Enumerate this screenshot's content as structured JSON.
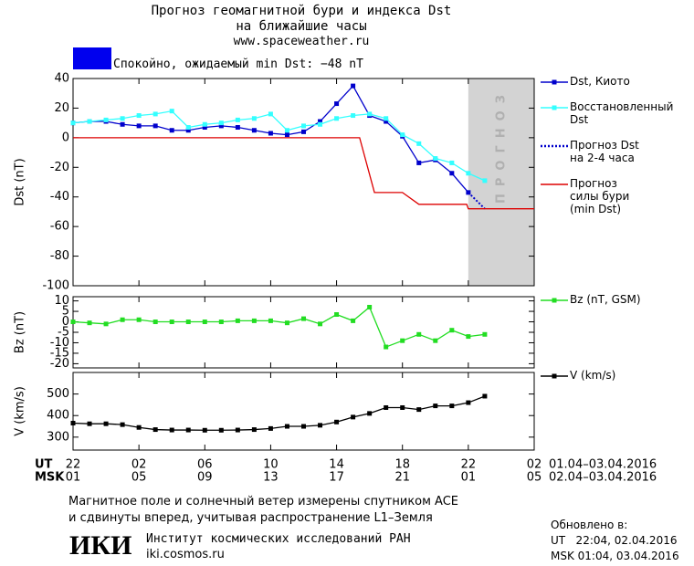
{
  "header": {
    "title": "Прогноз геомагнитной бури и индекса Dst\nна ближайшие часы",
    "site": "www.spaceweather.ru"
  },
  "status": {
    "text": "Спокойно, ожидаемый min Dst: −48 nT",
    "color": "#0000ee"
  },
  "chart_data": [
    {
      "type": "line",
      "ylabel": "Dst (nT)",
      "xlim": [
        0,
        28
      ],
      "ylim": [
        -100,
        40
      ],
      "yticks": [
        -100,
        -80,
        -60,
        -40,
        -20,
        0,
        20,
        40
      ],
      "forecast_region": {
        "xlim": [
          24,
          28
        ],
        "label": "ПРОГНОЗ",
        "color": "#d3d3d3"
      },
      "series": [
        {
          "name": "Dst, Киото",
          "color": "#0000cc",
          "marker": "square",
          "style": "solid",
          "x": [
            0,
            1,
            2,
            3,
            4,
            5,
            6,
            7,
            8,
            9,
            10,
            11,
            12,
            13,
            14,
            15,
            16,
            17,
            18,
            19,
            20,
            21,
            22,
            23,
            24
          ],
          "values": [
            10,
            11,
            11,
            9,
            8,
            8,
            5,
            5,
            7,
            8,
            7,
            5,
            3,
            2,
            4,
            11,
            23,
            35,
            15,
            11,
            1,
            -17,
            -15,
            -24,
            -37
          ]
        },
        {
          "name": "Восстановленный\nDst",
          "color": "#33ffff",
          "marker": "square",
          "style": "solid",
          "x": [
            0,
            1,
            2,
            3,
            4,
            5,
            6,
            7,
            8,
            9,
            10,
            11,
            12,
            13,
            14,
            15,
            16,
            17,
            18,
            19,
            20,
            21,
            22,
            23,
            24,
            25
          ],
          "values": [
            10,
            11,
            12,
            13,
            15,
            16,
            18,
            7,
            9,
            10,
            12,
            13,
            16,
            5,
            8,
            9,
            13,
            15,
            16,
            13,
            2,
            -4,
            -14,
            -17,
            -24,
            -29
          ]
        },
        {
          "name": "Прогноз Dst\nна 2-4 часа",
          "color": "#0000cc",
          "marker": "none",
          "style": "dotted",
          "x": [
            24,
            25
          ],
          "values": [
            -37,
            -48
          ]
        },
        {
          "name": "Прогноз\nсилы бури\n(min Dst)",
          "color": "#dd0000",
          "marker": "none",
          "style": "solid",
          "x": [
            0,
            17.4,
            18.3,
            20,
            21,
            23.9,
            24,
            28
          ],
          "values": [
            0,
            0,
            -37,
            -37,
            -45,
            -45,
            -48,
            -48
          ]
        }
      ]
    },
    {
      "type": "line",
      "ylabel": "Bz (nT)",
      "xlim": [
        0,
        28
      ],
      "ylim": [
        -22,
        12
      ],
      "yticks": [
        -20,
        -15,
        -10,
        -5,
        0,
        5,
        10
      ],
      "series": [
        {
          "name": "Bz (nT, GSM)",
          "color": "#22dd22",
          "marker": "square",
          "style": "solid",
          "x": [
            0,
            1,
            2,
            3,
            4,
            5,
            6,
            7,
            8,
            9,
            10,
            11,
            12,
            13,
            14,
            15,
            16,
            17,
            18,
            19,
            20,
            21,
            22,
            23,
            24,
            25
          ],
          "values": [
            0,
            -0.5,
            -1,
            1,
            1,
            0,
            0,
            0,
            0,
            0,
            0.5,
            0.5,
            0.5,
            -0.5,
            1.5,
            -1,
            3.5,
            0.5,
            7,
            -12,
            -9,
            -6,
            -9,
            -4,
            -7,
            -6
          ]
        }
      ]
    },
    {
      "type": "line",
      "ylabel": "V (km/s)",
      "xlim": [
        0,
        28
      ],
      "ylim": [
        240,
        600
      ],
      "yticks": [
        300,
        400,
        500
      ],
      "series": [
        {
          "name": "V (km/s)",
          "color": "#000000",
          "marker": "square",
          "style": "solid",
          "x": [
            0,
            1,
            2,
            3,
            4,
            5,
            6,
            7,
            8,
            9,
            10,
            11,
            12,
            13,
            14,
            15,
            16,
            17,
            18,
            19,
            20,
            21,
            22,
            23,
            24,
            25
          ],
          "values": [
            365,
            362,
            362,
            358,
            345,
            335,
            333,
            333,
            332,
            332,
            333,
            335,
            340,
            350,
            350,
            355,
            370,
            393,
            410,
            437,
            437,
            428,
            445,
            445,
            460,
            490
          ]
        }
      ],
      "xlabel": "UT",
      "xlabel2": "MSK",
      "date_range": "01.04–03.04.2016",
      "date_range2": "02.04–03.04.2016",
      "xticks": [
        {
          "value": 0,
          "label": "22"
        },
        {
          "value": 4,
          "label": "02"
        },
        {
          "value": 8,
          "label": "06"
        },
        {
          "value": 12,
          "label": "10"
        },
        {
          "value": 16,
          "label": "14"
        },
        {
          "value": 20,
          "label": "18"
        },
        {
          "value": 24,
          "label": "22"
        },
        {
          "value": 28,
          "label": "02"
        }
      ],
      "xticks2": [
        {
          "value": 0,
          "label": "01"
        },
        {
          "value": 4,
          "label": "05"
        },
        {
          "value": 8,
          "label": "09"
        },
        {
          "value": 12,
          "label": "13"
        },
        {
          "value": 16,
          "label": "17"
        },
        {
          "value": 20,
          "label": "21"
        },
        {
          "value": 24,
          "label": "01"
        },
        {
          "value": 28,
          "label": "05"
        }
      ]
    }
  ],
  "footer": {
    "note": "Магнитное поле и солнечный ветер измерены спутником ACE\nи сдвинуты вперед, учитывая распространение L1–Земля",
    "logo": "ИКИ",
    "institute": "Институт космических исследований РАН",
    "site": "iki.cosmos.ru",
    "updated": "Обновлено в:",
    "updated_ut": "UT   22:04, 02.04.2016",
    "updated_msk": "MSK 01:04, 03.04.2016"
  }
}
